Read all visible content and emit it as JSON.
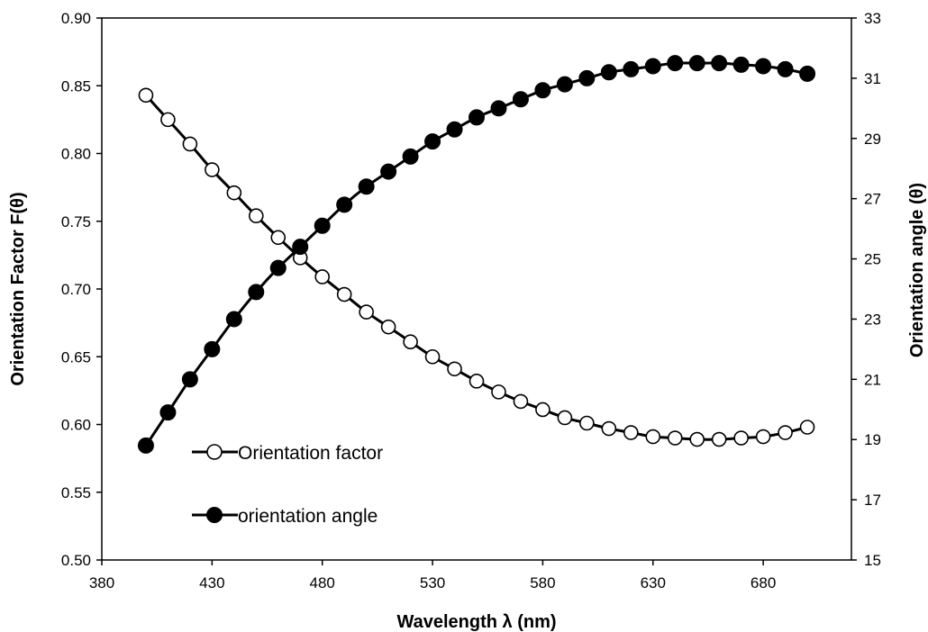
{
  "chart_data": {
    "type": "line",
    "xlabel": "Wavelength  λ  (nm)",
    "ylabel": "Orientation Factor  F(θ)",
    "y2label": "Orientation angle  (θ)",
    "xlim": [
      380,
      720
    ],
    "ylim": [
      0.5,
      0.9
    ],
    "y2lim": [
      15,
      33
    ],
    "xticks": [
      380,
      430,
      480,
      530,
      580,
      630,
      680
    ],
    "yticks": [
      "0.50",
      "0.55",
      "0.60",
      "0.65",
      "0.70",
      "0.75",
      "0.80",
      "0.85",
      "0.90"
    ],
    "y2ticks": [
      "15",
      "17",
      "19",
      "21",
      "23",
      "25",
      "27",
      "29",
      "31",
      "33"
    ],
    "grid": false,
    "legend_position": "bottom-left",
    "x": [
      400,
      410,
      420,
      430,
      440,
      450,
      460,
      470,
      480,
      490,
      500,
      510,
      520,
      530,
      540,
      550,
      560,
      570,
      580,
      590,
      600,
      610,
      620,
      630,
      640,
      650,
      660,
      670,
      680,
      690,
      700
    ],
    "series": [
      {
        "name": "Orientation factor",
        "axis": "left",
        "marker": "open-circle",
        "color": "#000000",
        "values": [
          0.843,
          0.825,
          0.807,
          0.788,
          0.771,
          0.754,
          0.738,
          0.723,
          0.709,
          0.696,
          0.683,
          0.672,
          0.661,
          0.65,
          0.641,
          0.632,
          0.624,
          0.617,
          0.611,
          0.605,
          0.601,
          0.597,
          0.594,
          0.591,
          0.59,
          0.589,
          0.589,
          0.59,
          0.591,
          0.594,
          0.598
        ]
      },
      {
        "name": "orientation angle",
        "axis": "right",
        "marker": "filled-circle",
        "color": "#000000",
        "values": [
          18.8,
          19.9,
          21.0,
          22.0,
          23.0,
          23.9,
          24.7,
          25.4,
          26.1,
          26.8,
          27.4,
          27.9,
          28.4,
          28.9,
          29.3,
          29.7,
          30.0,
          30.3,
          30.6,
          30.8,
          31.0,
          31.2,
          31.3,
          31.4,
          31.5,
          31.5,
          31.5,
          31.45,
          31.4,
          31.3,
          31.15
        ]
      }
    ]
  }
}
